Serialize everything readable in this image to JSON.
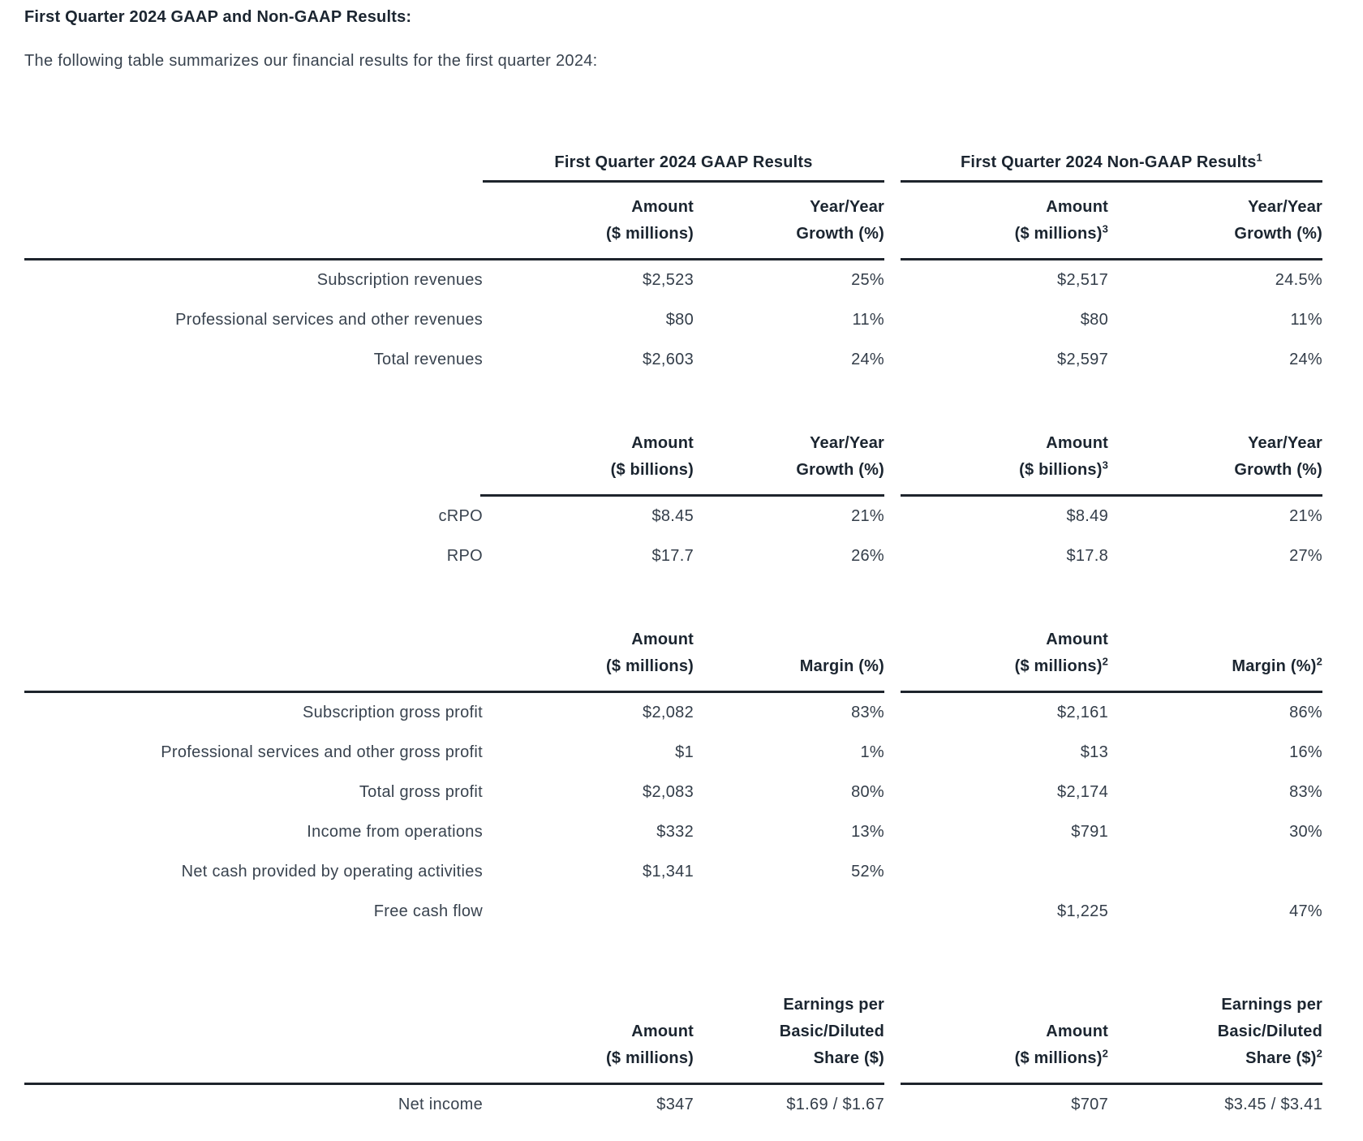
{
  "document": {
    "title": "First Quarter 2024 GAAP and Non-GAAP Results:",
    "intro": "The following table summarizes our financial results for the first quarter 2024:"
  },
  "table": {
    "group_headers": [
      {
        "label": "First Quarter 2024 GAAP Results",
        "sup": ""
      },
      {
        "label": "First Quarter 2024 Non-GAAP Results",
        "sup": "1"
      }
    ],
    "sections": [
      {
        "name": "revenues",
        "left_rule_full_width": true,
        "columns": [
          {
            "lines": [
              "Amount",
              "($ millions)"
            ],
            "sups": [
              "",
              ""
            ]
          },
          {
            "lines": [
              "Year/Year",
              "Growth (%)"
            ],
            "sups": [
              "",
              ""
            ]
          },
          {
            "lines": [
              "Amount",
              "($ millions)"
            ],
            "sups": [
              "",
              "3"
            ]
          },
          {
            "lines": [
              "Year/Year",
              "Growth (%)"
            ],
            "sups": [
              "",
              ""
            ]
          }
        ],
        "rows": [
          {
            "label": "Subscription revenues",
            "values": [
              "$2,523",
              "25%",
              "$2,517",
              "24.5%"
            ]
          },
          {
            "label": "Professional services and other revenues",
            "values": [
              "$80",
              "11%",
              "$80",
              "11%"
            ]
          },
          {
            "label": "Total revenues",
            "values": [
              "$2,603",
              "24%",
              "$2,597",
              "24%"
            ]
          }
        ]
      },
      {
        "name": "rpo",
        "left_rule_full_width": false,
        "columns": [
          {
            "lines": [
              "Amount",
              "($ billions)"
            ],
            "sups": [
              "",
              ""
            ]
          },
          {
            "lines": [
              "Year/Year",
              "Growth (%)"
            ],
            "sups": [
              "",
              ""
            ]
          },
          {
            "lines": [
              "Amount",
              "($ billions)"
            ],
            "sups": [
              "",
              "3"
            ]
          },
          {
            "lines": [
              "Year/Year",
              "Growth (%)"
            ],
            "sups": [
              "",
              ""
            ]
          }
        ],
        "rows": [
          {
            "label": "cRPO",
            "values": [
              "$8.45",
              "21%",
              "$8.49",
              "21%"
            ]
          },
          {
            "label": "RPO",
            "values": [
              "$17.7",
              "26%",
              "$17.8",
              "27%"
            ]
          }
        ]
      },
      {
        "name": "profit",
        "left_rule_full_width": true,
        "columns": [
          {
            "lines": [
              "Amount",
              "($ millions)"
            ],
            "sups": [
              "",
              ""
            ]
          },
          {
            "lines": [
              "Margin (%)"
            ],
            "sups": [
              ""
            ]
          },
          {
            "lines": [
              "Amount",
              "($ millions)"
            ],
            "sups": [
              "",
              "2"
            ]
          },
          {
            "lines": [
              "Margin (%)"
            ],
            "sups": [
              "2"
            ]
          }
        ],
        "rows": [
          {
            "label": "Subscription gross profit",
            "values": [
              "$2,082",
              "83%",
              "$2,161",
              "86%"
            ]
          },
          {
            "label": "Professional services and other gross profit",
            "values": [
              "$1",
              "1%",
              "$13",
              "16%"
            ]
          },
          {
            "label": "Total gross profit",
            "values": [
              "$2,083",
              "80%",
              "$2,174",
              "83%"
            ]
          },
          {
            "label": "Income from operations",
            "values": [
              "$332",
              "13%",
              "$791",
              "30%"
            ]
          },
          {
            "label": "Net cash provided by operating activities",
            "values": [
              "$1,341",
              "52%",
              "",
              ""
            ]
          },
          {
            "label": "Free cash flow",
            "values": [
              "",
              "",
              "$1,225",
              "47%"
            ]
          }
        ]
      },
      {
        "name": "net-income",
        "left_rule_full_width": true,
        "columns": [
          {
            "lines": [
              "Amount",
              "($ millions)"
            ],
            "sups": [
              "",
              ""
            ]
          },
          {
            "lines": [
              "Earnings per",
              "Basic/Diluted",
              "Share ($)"
            ],
            "sups": [
              "",
              "",
              ""
            ]
          },
          {
            "lines": [
              "Amount",
              "($ millions)"
            ],
            "sups": [
              "",
              "2"
            ]
          },
          {
            "lines": [
              "Earnings per",
              "Basic/Diluted",
              "Share ($)"
            ],
            "sups": [
              "",
              "",
              "2"
            ]
          }
        ],
        "rows": [
          {
            "label": "Net income",
            "values": [
              "$347",
              "$1.69 / $1.67",
              "$707",
              "$3.45 / $3.41"
            ]
          }
        ]
      }
    ]
  },
  "colors": {
    "text": "#333d49",
    "heading": "#1b2530",
    "rule": "#1e242c",
    "background": "#ffffff"
  }
}
